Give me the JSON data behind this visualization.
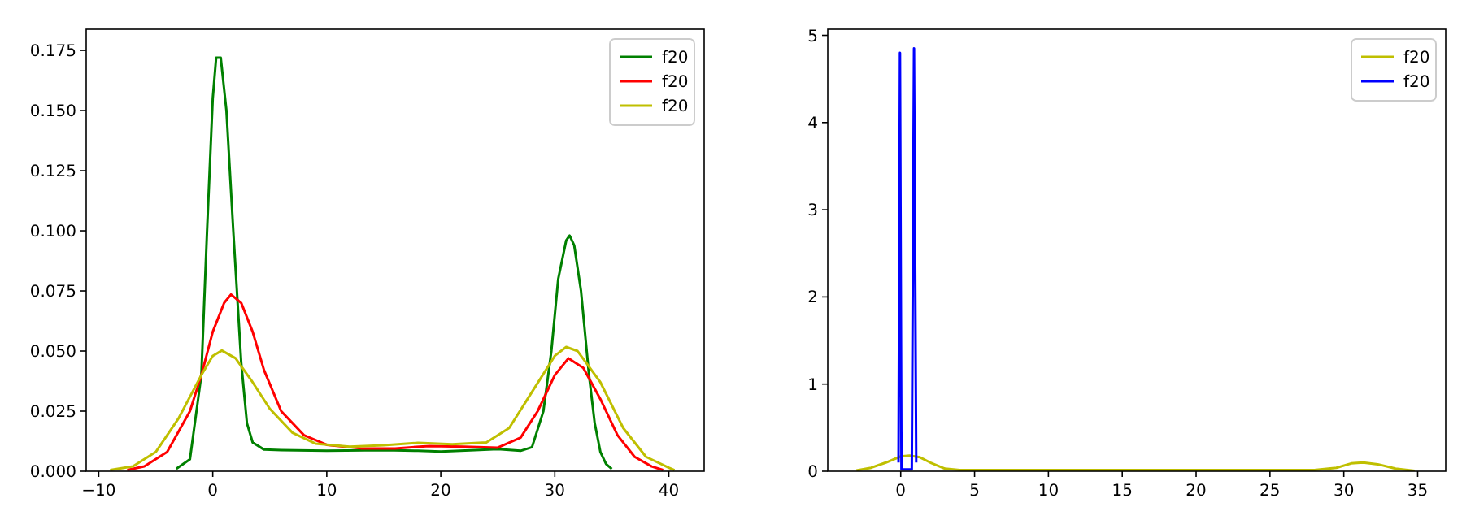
{
  "chart_data": [
    {
      "type": "line",
      "xlim": [
        -11.1,
        43.1
      ],
      "ylim": [
        0,
        0.1838
      ],
      "xticks": [
        {
          "value": -10,
          "label": "−10"
        },
        0,
        10,
        20,
        30,
        40
      ],
      "yticks": [
        {
          "value": 0,
          "label": "0.000"
        },
        {
          "value": 0.025,
          "label": "0.025"
        },
        {
          "value": 0.05,
          "label": "0.050"
        },
        {
          "value": 0.075,
          "label": "0.075"
        },
        {
          "value": 0.1,
          "label": "0.100"
        },
        {
          "value": 0.125,
          "label": "0.125"
        },
        {
          "value": 0.15,
          "label": "0.150"
        },
        {
          "value": 0.175,
          "label": "0.175"
        }
      ],
      "legend": "top right",
      "series": [
        {
          "name": "f20",
          "color": "#008000",
          "x": [
            -3.2,
            -2,
            -1,
            -0.5,
            0,
            0.3,
            0.7,
            1.2,
            1.8,
            2.5,
            3,
            3.5,
            4.5,
            6,
            10,
            15,
            18,
            20,
            23,
            25,
            27,
            28,
            29,
            29.7,
            30.3,
            31,
            31.3,
            31.7,
            32.3,
            33,
            33.5,
            34,
            34.5,
            35
          ],
          "values": [
            0.001,
            0.005,
            0.04,
            0.1,
            0.155,
            0.172,
            0.172,
            0.15,
            0.1,
            0.045,
            0.02,
            0.012,
            0.009,
            0.0088,
            0.0085,
            0.0088,
            0.0085,
            0.0082,
            0.0088,
            0.0092,
            0.0085,
            0.01,
            0.025,
            0.05,
            0.08,
            0.096,
            0.098,
            0.094,
            0.075,
            0.04,
            0.02,
            0.008,
            0.003,
            0.001
          ]
        },
        {
          "name": "f20",
          "color": "#ff0000",
          "x": [
            -7.5,
            -6,
            -4,
            -2,
            -1,
            0,
            1,
            1.6,
            2.5,
            3.5,
            4.5,
            6,
            8,
            10,
            13,
            16,
            19,
            22,
            25,
            27,
            28.5,
            30,
            31.2,
            32.5,
            34,
            35.5,
            37,
            38.5,
            39.5
          ],
          "values": [
            0.0005,
            0.002,
            0.008,
            0.025,
            0.04,
            0.058,
            0.07,
            0.0735,
            0.07,
            0.058,
            0.042,
            0.025,
            0.015,
            0.011,
            0.0095,
            0.0095,
            0.0105,
            0.0102,
            0.0098,
            0.014,
            0.025,
            0.04,
            0.047,
            0.043,
            0.03,
            0.015,
            0.006,
            0.002,
            0.0005
          ]
        },
        {
          "name": "f20",
          "color": "#bfbf00",
          "x": [
            -9,
            -7,
            -5,
            -3,
            -1,
            0,
            0.8,
            2,
            3.5,
            5,
            7,
            9,
            12,
            15,
            18,
            21,
            24,
            26,
            28,
            30,
            31,
            32,
            34,
            36,
            38,
            40,
            40.5
          ],
          "values": [
            0.0005,
            0.002,
            0.008,
            0.022,
            0.04,
            0.048,
            0.0502,
            0.047,
            0.037,
            0.026,
            0.016,
            0.0115,
            0.0102,
            0.0108,
            0.0118,
            0.0112,
            0.012,
            0.018,
            0.033,
            0.048,
            0.0517,
            0.05,
            0.037,
            0.018,
            0.006,
            0.0015,
            0.0005
          ]
        }
      ]
    },
    {
      "type": "line",
      "xlim": [
        -4.94,
        36.9
      ],
      "ylim": [
        0,
        5.07
      ],
      "xticks": [
        0,
        5,
        10,
        15,
        20,
        25,
        30,
        35
      ],
      "yticks": [
        0,
        1,
        2,
        3,
        4,
        5
      ],
      "legend": "top right",
      "series": [
        {
          "name": "f20",
          "color": "#bfbf00",
          "x": [
            -3,
            -2,
            -1,
            0,
            0.6,
            1.3,
            2,
            3,
            4,
            10,
            20,
            28,
            29.5,
            30.5,
            31.3,
            32.3,
            33.5,
            34.8
          ],
          "values": [
            0.01,
            0.04,
            0.1,
            0.17,
            0.18,
            0.16,
            0.1,
            0.03,
            0.015,
            0.015,
            0.015,
            0.015,
            0.04,
            0.09,
            0.1,
            0.08,
            0.03,
            0.005
          ]
        },
        {
          "name": "f20",
          "color": "#0000ff",
          "x": [
            -0.15,
            -0.05,
            0.05,
            0.75,
            0.9,
            1.05
          ],
          "values": [
            0.1,
            4.8,
            0.02,
            0.02,
            4.85,
            0.1
          ]
        }
      ]
    }
  ]
}
